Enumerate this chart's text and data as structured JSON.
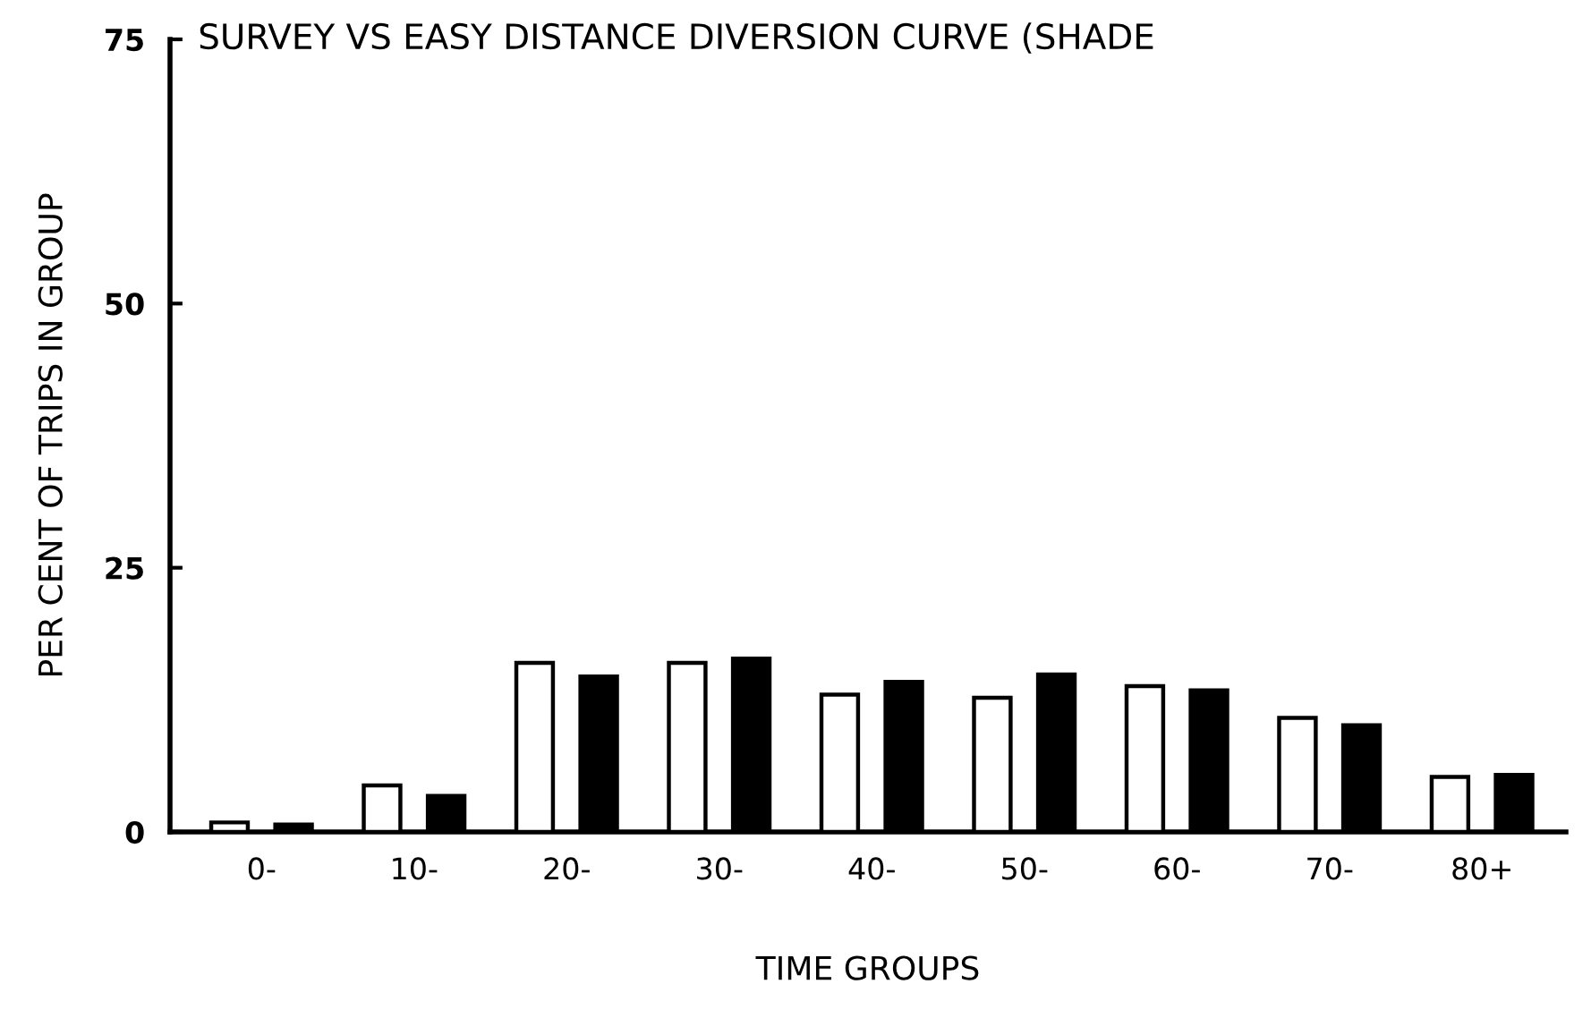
{
  "chart_data": {
    "type": "bar",
    "title": "SURVEY VS EASY DISTANCE DIVERSION CURVE (SHADE",
    "xlabel": "TIME GROUPS",
    "ylabel": "PER CENT OF TRIPS IN GROUP",
    "categories": [
      "0-",
      "10-",
      "20-",
      "30-",
      "40-",
      "50-",
      "60-",
      "70-",
      "80+"
    ],
    "series": [
      {
        "color": "#ffffff",
        "values": [
          0.9,
          4.4,
          16.0,
          16.0,
          13.0,
          12.7,
          13.8,
          10.8,
          5.2
        ]
      },
      {
        "color": "#000000",
        "values": [
          0.7,
          3.4,
          14.7,
          16.4,
          14.2,
          14.9,
          13.4,
          10.1,
          5.4
        ]
      }
    ],
    "ylim": [
      0,
      75
    ],
    "yticks": [
      0,
      25,
      50,
      75
    ],
    "grid": false,
    "legend": false
  }
}
